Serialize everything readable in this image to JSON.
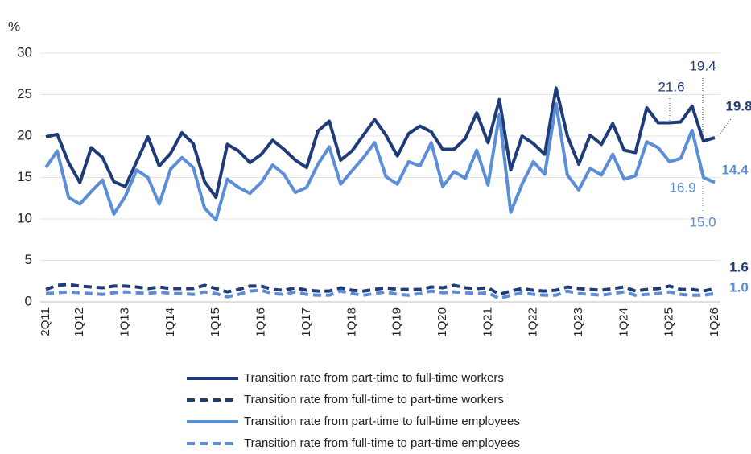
{
  "chart_data": {
    "type": "line",
    "y_axis_label": "%",
    "categories": [
      "2Q11",
      null,
      null,
      "1Q12",
      null,
      null,
      null,
      "1Q13",
      null,
      null,
      null,
      "1Q14",
      null,
      null,
      null,
      "1Q15",
      null,
      null,
      null,
      "1Q16",
      null,
      null,
      null,
      "1Q17",
      null,
      null,
      null,
      "1Q18",
      null,
      null,
      null,
      "1Q19",
      null,
      null,
      null,
      "1Q20",
      null,
      null,
      null,
      "1Q21",
      null,
      null,
      null,
      "1Q22",
      null,
      null,
      null,
      "1Q23",
      null,
      null,
      null,
      "1Q24",
      null,
      null,
      null,
      "1Q25",
      null,
      null,
      null,
      "1Q26"
    ],
    "ylim": [
      0,
      30
    ],
    "yticks": [
      0,
      5,
      10,
      15,
      20,
      25,
      30
    ],
    "grid": true,
    "legend": "bottom",
    "series": [
      {
        "name": "Transition rate from part-time to full-time workers",
        "color": "#1f3c78",
        "line_style": "solid",
        "values": [
          19.9,
          20.2,
          16.8,
          14.4,
          18.6,
          17.4,
          14.5,
          13.9,
          16.9,
          19.9,
          16.4,
          17.9,
          20.4,
          19.1,
          14.5,
          12.6,
          19.0,
          18.2,
          16.8,
          17.8,
          19.5,
          18.4,
          17.1,
          16.2,
          20.6,
          21.8,
          17.1,
          18.2,
          20.1,
          22.0,
          20.1,
          17.6,
          20.3,
          21.2,
          20.5,
          18.4,
          18.4,
          19.7,
          22.8,
          19.2,
          24.4,
          15.9,
          20.0,
          19.1,
          17.8,
          25.8,
          20.0,
          16.6,
          20.1,
          19.0,
          21.5,
          18.3,
          18.0,
          23.4,
          21.6,
          21.6,
          21.7,
          23.6,
          19.4,
          19.8
        ],
        "value_labels": [
          null,
          null,
          null,
          null,
          null,
          null,
          null,
          null,
          null,
          null,
          null,
          null,
          null,
          null,
          null,
          null,
          null,
          null,
          null,
          null,
          null,
          null,
          null,
          null,
          null,
          null,
          null,
          null,
          null,
          null,
          null,
          null,
          null,
          null,
          null,
          null,
          null,
          null,
          null,
          null,
          null,
          null,
          null,
          null,
          null,
          null,
          null,
          null,
          null,
          null,
          null,
          null,
          null,
          null,
          null,
          "21.6",
          null,
          null,
          "19.4",
          "19.8"
        ]
      },
      {
        "name": "Transition rate from full-time to part-time workers",
        "color": "#1f3c78",
        "line_style": "dashed",
        "values": [
          1.5,
          2.0,
          2.1,
          1.9,
          1.8,
          1.7,
          1.9,
          1.9,
          1.8,
          1.6,
          1.8,
          1.6,
          1.6,
          1.6,
          2.0,
          1.6,
          1.2,
          1.5,
          1.9,
          1.9,
          1.5,
          1.4,
          1.7,
          1.4,
          1.3,
          1.3,
          1.7,
          1.4,
          1.3,
          1.5,
          1.7,
          1.5,
          1.5,
          1.5,
          1.8,
          1.7,
          2.0,
          1.7,
          1.6,
          1.7,
          0.9,
          1.3,
          1.6,
          1.4,
          1.3,
          1.4,
          1.8,
          1.6,
          1.5,
          1.4,
          1.6,
          1.8,
          1.3,
          1.5,
          1.6,
          1.9,
          1.5,
          1.5,
          1.3,
          1.6
        ],
        "value_labels": [
          null,
          null,
          null,
          null,
          null,
          null,
          null,
          null,
          null,
          null,
          null,
          null,
          null,
          null,
          null,
          null,
          null,
          null,
          null,
          null,
          null,
          null,
          null,
          null,
          null,
          null,
          null,
          null,
          null,
          null,
          null,
          null,
          null,
          null,
          null,
          null,
          null,
          null,
          null,
          null,
          null,
          null,
          null,
          null,
          null,
          null,
          null,
          null,
          null,
          null,
          null,
          null,
          null,
          null,
          null,
          null,
          null,
          null,
          null,
          "1.6"
        ]
      },
      {
        "name": "Transition rate from part-time to full-time employees",
        "color": "#5b8ed6",
        "line_style": "solid",
        "values": [
          16.2,
          18.2,
          12.6,
          11.8,
          13.3,
          14.7,
          10.6,
          12.7,
          15.9,
          15.0,
          11.8,
          16.0,
          17.4,
          16.2,
          11.3,
          9.9,
          14.8,
          13.8,
          13.1,
          14.4,
          16.5,
          15.4,
          13.2,
          13.8,
          16.6,
          18.7,
          14.2,
          15.8,
          17.4,
          19.2,
          15.1,
          14.2,
          16.9,
          16.4,
          19.2,
          13.9,
          15.7,
          14.9,
          18.3,
          14.1,
          22.6,
          10.8,
          14.2,
          16.9,
          15.4,
          23.9,
          15.3,
          13.5,
          16.1,
          15.3,
          17.8,
          14.8,
          15.2,
          19.3,
          18.6,
          16.9,
          17.3,
          20.7,
          15.0,
          14.4
        ],
        "value_labels": [
          null,
          null,
          null,
          null,
          null,
          null,
          null,
          null,
          null,
          null,
          null,
          null,
          null,
          null,
          null,
          null,
          null,
          null,
          null,
          null,
          null,
          null,
          null,
          null,
          null,
          null,
          null,
          null,
          null,
          null,
          null,
          null,
          null,
          null,
          null,
          null,
          null,
          null,
          null,
          null,
          null,
          null,
          null,
          null,
          null,
          null,
          null,
          null,
          null,
          null,
          null,
          null,
          null,
          null,
          null,
          "16.9",
          null,
          null,
          "15.0",
          "14.4"
        ]
      },
      {
        "name": "Transition rate from full-time to part-time employees",
        "color": "#5b8ed6",
        "line_style": "dashed",
        "values": [
          1.0,
          1.1,
          1.2,
          1.1,
          1.0,
          0.9,
          1.1,
          1.2,
          1.1,
          1.0,
          1.2,
          1.0,
          1.0,
          0.9,
          1.2,
          1.0,
          0.6,
          0.9,
          1.3,
          1.4,
          1.0,
          0.9,
          1.2,
          0.9,
          0.8,
          0.8,
          1.3,
          1.0,
          0.8,
          1.0,
          1.2,
          0.9,
          0.8,
          1.0,
          1.3,
          1.1,
          1.2,
          1.1,
          1.0,
          1.1,
          0.4,
          0.8,
          1.1,
          0.9,
          0.8,
          0.8,
          1.3,
          1.0,
          0.9,
          0.8,
          1.0,
          1.2,
          0.8,
          0.9,
          1.0,
          1.2,
          0.9,
          0.8,
          0.8,
          1.0
        ],
        "value_labels": [
          null,
          null,
          null,
          null,
          null,
          null,
          null,
          null,
          null,
          null,
          null,
          null,
          null,
          null,
          null,
          null,
          null,
          null,
          null,
          null,
          null,
          null,
          null,
          null,
          null,
          null,
          null,
          null,
          null,
          null,
          null,
          null,
          null,
          null,
          null,
          null,
          null,
          null,
          null,
          null,
          null,
          null,
          null,
          null,
          null,
          null,
          null,
          null,
          null,
          null,
          null,
          null,
          null,
          null,
          null,
          null,
          null,
          null,
          null,
          "1.0"
        ]
      }
    ]
  }
}
